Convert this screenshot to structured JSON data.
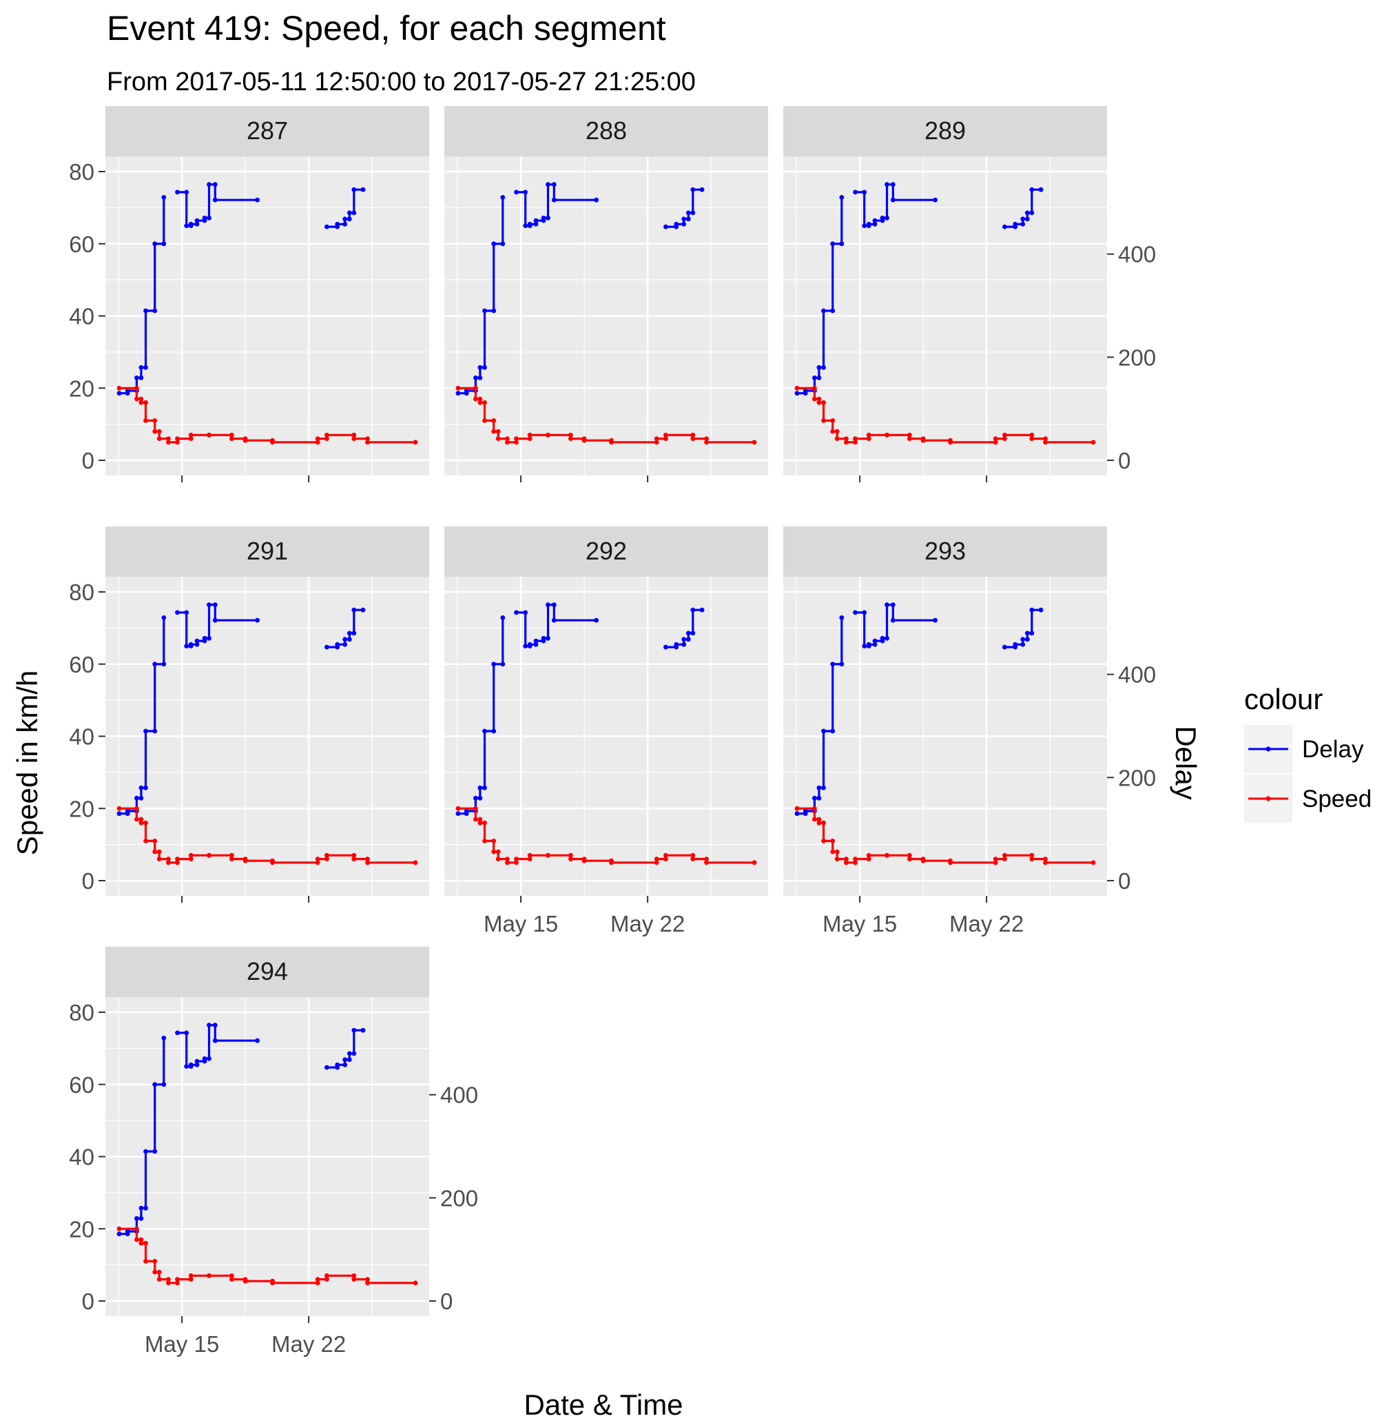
{
  "chart_data": {
    "type": "line",
    "title": "Event 419: Speed, for each segment",
    "subtitle": "From 2017-05-11 12:50:00 to 2017-05-27 21:25:00",
    "xlabel": "Date & Time",
    "ylabel": "Speed in km/h",
    "y2label": "Delay",
    "xlim": [
      "2017-05-11 12:50:00",
      "2017-05-27 21:25:00"
    ],
    "ylim": [
      0,
      80
    ],
    "y2lim": [
      0,
      560
    ],
    "xticks": [
      {
        "date": "2017-05-15",
        "label": "May 15"
      },
      {
        "date": "2017-05-22",
        "label": "May 22"
      }
    ],
    "yticks": [
      "0",
      "20",
      "40",
      "60",
      "80"
    ],
    "y2ticks": [
      "0",
      "200",
      "400"
    ],
    "grid": true,
    "panels": [
      "287",
      "288",
      "289",
      "291",
      "292",
      "293",
      "294"
    ],
    "legend": {
      "title": "colour",
      "position": "right",
      "entries": [
        {
          "label": "Delay",
          "color": "#0000FF"
        },
        {
          "label": "Speed",
          "color": "#FF0000"
        }
      ]
    },
    "series": [
      {
        "name": "Delay",
        "color": "#0000FF",
        "axis": "secondary",
        "segments": [
          [
            [
              "2017-05-11 12:50",
              130
            ],
            [
              "2017-05-12 00:00",
              130
            ],
            [
              "2017-05-12 00:00",
              135
            ],
            [
              "2017-05-12 12:00",
              135
            ],
            [
              "2017-05-12 12:00",
              160
            ],
            [
              "2017-05-12 18:00",
              160
            ],
            [
              "2017-05-12 18:00",
              180
            ],
            [
              "2017-05-13 00:00",
              180
            ],
            [
              "2017-05-13 00:00",
              290
            ],
            [
              "2017-05-13 12:00",
              290
            ],
            [
              "2017-05-13 12:00",
              420
            ],
            [
              "2017-05-14 00:00",
              420
            ],
            [
              "2017-05-14 00:00",
              510
            ]
          ],
          [
            [
              "2017-05-14 18:00",
              520
            ],
            [
              "2017-05-15 06:00",
              520
            ],
            [
              "2017-05-15 06:00",
              455
            ],
            [
              "2017-05-15 12:00",
              455
            ],
            [
              "2017-05-15 12:00",
              458
            ],
            [
              "2017-05-15 20:00",
              458
            ],
            [
              "2017-05-15 20:00",
              465
            ],
            [
              "2017-05-16 06:00",
              465
            ],
            [
              "2017-05-16 06:00",
              470
            ],
            [
              "2017-05-16 12:00",
              470
            ],
            [
              "2017-05-16 12:00",
              535
            ],
            [
              "2017-05-16 20:00",
              535
            ],
            [
              "2017-05-16 20:00",
              505
            ],
            [
              "2017-05-19 04:00",
              505
            ]
          ],
          [
            [
              "2017-05-23 00:00",
              453
            ],
            [
              "2017-05-23 14:00",
              453
            ],
            [
              "2017-05-23 14:00",
              458
            ],
            [
              "2017-05-24 00:00",
              458
            ],
            [
              "2017-05-24 00:00",
              468
            ],
            [
              "2017-05-24 06:00",
              468
            ],
            [
              "2017-05-24 06:00",
              480
            ],
            [
              "2017-05-24 12:00",
              480
            ],
            [
              "2017-05-24 12:00",
              525
            ],
            [
              "2017-05-25 00:00",
              525
            ]
          ]
        ]
      },
      {
        "name": "Speed",
        "color": "#FF0000",
        "axis": "primary",
        "segments": [
          [
            [
              "2017-05-11 12:50",
              20
            ],
            [
              "2017-05-12 12:00",
              20
            ],
            [
              "2017-05-12 12:00",
              17
            ],
            [
              "2017-05-12 18:00",
              17
            ],
            [
              "2017-05-12 18:00",
              16
            ],
            [
              "2017-05-13 00:00",
              16
            ],
            [
              "2017-05-13 00:00",
              11
            ],
            [
              "2017-05-13 12:00",
              11
            ],
            [
              "2017-05-13 12:00",
              8
            ],
            [
              "2017-05-13 18:00",
              8
            ],
            [
              "2017-05-13 18:00",
              6
            ],
            [
              "2017-05-14 06:00",
              6
            ],
            [
              "2017-05-14 06:00",
              5
            ],
            [
              "2017-05-14 18:00",
              5
            ],
            [
              "2017-05-14 18:00",
              6
            ],
            [
              "2017-05-15 12:00",
              6
            ],
            [
              "2017-05-15 12:00",
              7
            ],
            [
              "2017-05-16 12:00",
              7
            ],
            [
              "2017-05-16 12:00",
              7
            ],
            [
              "2017-05-17 18:00",
              7
            ],
            [
              "2017-05-17 18:00",
              6
            ],
            [
              "2017-05-18 12:00",
              6
            ],
            [
              "2017-05-18 12:00",
              5.5
            ],
            [
              "2017-05-20 00:00",
              5.5
            ],
            [
              "2017-05-20 00:00",
              5
            ],
            [
              "2017-05-22 12:00",
              5
            ],
            [
              "2017-05-22 12:00",
              6
            ],
            [
              "2017-05-23 00:00",
              6
            ],
            [
              "2017-05-23 00:00",
              7
            ],
            [
              "2017-05-24 12:00",
              7
            ],
            [
              "2017-05-24 12:00",
              6
            ],
            [
              "2017-05-25 06:00",
              6
            ],
            [
              "2017-05-25 06:00",
              5
            ],
            [
              "2017-05-27 21:25",
              5
            ]
          ]
        ]
      }
    ]
  }
}
